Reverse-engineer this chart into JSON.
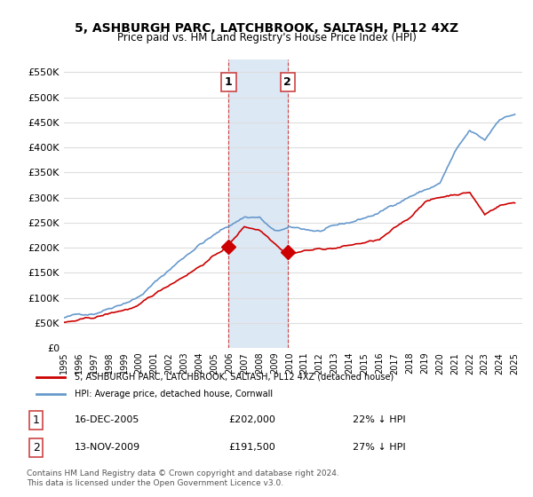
{
  "title": "5, ASHBURGH PARC, LATCHBROOK, SALTASH, PL12 4XZ",
  "subtitle": "Price paid vs. HM Land Registry's House Price Index (HPI)",
  "legend_line1": "5, ASHBURGH PARC, LATCHBROOK, SALTASH, PL12 4XZ (detached house)",
  "legend_line2": "HPI: Average price, detached house, Cornwall",
  "transaction1_label": "1",
  "transaction1_date": "16-DEC-2005",
  "transaction1_price": "£202,000",
  "transaction1_pct": "22% ↓ HPI",
  "transaction2_label": "2",
  "transaction2_date": "13-NOV-2009",
  "transaction2_price": "£191,500",
  "transaction2_pct": "27% ↓ HPI",
  "footnote": "Contains HM Land Registry data © Crown copyright and database right 2024.\nThis data is licensed under the Open Government Licence v3.0.",
  "hpi_color": "#6699cc",
  "price_color": "#cc0000",
  "marker_color": "#cc0000",
  "ylim": [
    0,
    575000
  ],
  "yticks": [
    0,
    50000,
    100000,
    150000,
    200000,
    250000,
    300000,
    350000,
    400000,
    450000,
    500000,
    550000
  ],
  "background_color": "#ffffff",
  "grid_color": "#dddddd",
  "shade_color": "#dde8f5",
  "vline_color": "#cc4444"
}
